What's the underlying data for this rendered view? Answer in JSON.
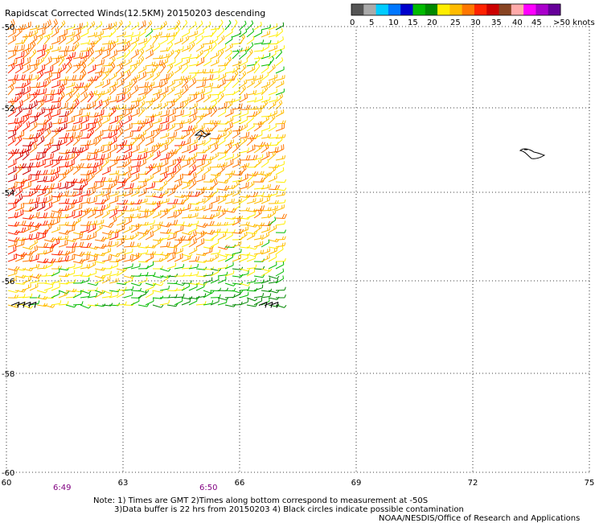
{
  "title": "Rapidscat Corrected Winds(12.5KM) 20150203 descending",
  "colorbar": {
    "colors": [
      "#555555",
      "#aaaaaa",
      "#00ccff",
      "#0077ff",
      "#0000cc",
      "#00bb00",
      "#008800",
      "#ffee00",
      "#ffbb00",
      "#ff7700",
      "#ff2200",
      "#cc0000",
      "#884422",
      "#ffaaaa",
      "#ff00ff",
      "#aa00cc",
      "#660099"
    ],
    "labels": [
      "0",
      "5",
      "10",
      "15",
      "20",
      "25",
      "30",
      "35",
      "40",
      "45",
      ">50 knots"
    ]
  },
  "axes": {
    "x_ticks": [
      "60",
      "63",
      "66",
      "69",
      "72",
      "75"
    ],
    "y_ticks": [
      "-50",
      "-52",
      "-54",
      "-56",
      "-58",
      "-60"
    ]
  },
  "time_labels": [
    "6:49",
    "6:50"
  ],
  "notes": {
    "line1": "Note: 1) Times are GMT 2)Times along bottom correspond to measurement at -50S",
    "line2": "3)Data buffer is 22 hrs from 20150203 4) Black circles indicate possible contamination",
    "credit": "NOAA/NESDIS/Office of Research and Applications"
  },
  "wind_field": {
    "lon_range": [
      60.0,
      67.0
    ],
    "lat_range": [
      -56.6,
      -50.0
    ],
    "speed_colors": [
      "#008800",
      "#00bb00",
      "#ffee00",
      "#ffbb00",
      "#ff7700",
      "#ff2200",
      "#cc0000"
    ]
  },
  "coastlines": [
    "Heard Island",
    "McDonald Islands"
  ]
}
